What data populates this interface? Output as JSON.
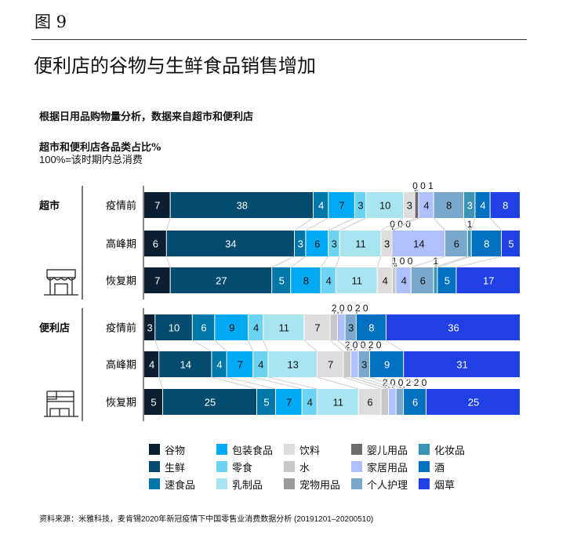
{
  "figure_label": "图 9",
  "title": "便利店的谷物与生鲜食品销售增加",
  "subtitle": "根据日用品购物量分析，数据来自超市和便利店",
  "source": "资料来源：米雅科技，麦肯锡2020年新冠疫情下中国零售业消费数据分析 (20191201–20200510)",
  "chart_data": {
    "type": "bar",
    "orientation": "horizontal",
    "stacked": "100%",
    "title": "超市和便利店各品类占比%",
    "note": "100%=该时期内总消费",
    "groups": [
      {
        "name": "超市",
        "icon": "storefront-icon",
        "categories": [
          "疫情前",
          "高峰期",
          "恢复期"
        ]
      },
      {
        "name": "便利店",
        "icon": "building-icon",
        "categories": [
          "疫情前",
          "高峰期",
          "恢复期"
        ]
      }
    ],
    "series": [
      {
        "name": "谷物",
        "color": "#0b1f33",
        "values": [
          7,
          6,
          7,
          3,
          4,
          5
        ]
      },
      {
        "name": "生鲜",
        "color": "#034b6f",
        "values": [
          38,
          34,
          27,
          10,
          14,
          25
        ]
      },
      {
        "name": "速食品",
        "color": "#0077a8",
        "values": [
          4,
          3,
          5,
          6,
          4,
          5
        ]
      },
      {
        "name": "包装食品",
        "color": "#00a9f4",
        "values": [
          7,
          6,
          8,
          9,
          7,
          7
        ]
      },
      {
        "name": "零食",
        "color": "#6dd3f2",
        "values": [
          3,
          3,
          4,
          4,
          4,
          4
        ]
      },
      {
        "name": "乳制品",
        "color": "#a9e5f0",
        "values": [
          10,
          11,
          11,
          11,
          13,
          11
        ]
      },
      {
        "name": "饮料",
        "color": "#dddddd",
        "values": [
          3,
          3,
          4,
          7,
          7,
          6
        ]
      },
      {
        "name": "水",
        "color": "#c8c8c8",
        "values": [
          0,
          0,
          1,
          2,
          2,
          2
        ]
      },
      {
        "name": "宠物用品",
        "color": "#9b9b9b",
        "values": [
          0,
          0,
          0,
          0,
          0,
          0
        ]
      },
      {
        "name": "婴儿用品",
        "color": "#6c6c6c",
        "values": [
          1,
          0,
          0,
          0,
          0,
          0
        ]
      },
      {
        "name": "家居用品",
        "color": "#b0c0fc",
        "values": [
          4,
          14,
          4,
          2,
          2,
          2
        ]
      },
      {
        "name": "个人护理",
        "color": "#7aa8cc",
        "values": [
          8,
          6,
          6,
          3,
          3,
          2
        ]
      },
      {
        "name": "化妆品",
        "color": "#3b94b3",
        "values": [
          3,
          1,
          1,
          0,
          0,
          0
        ]
      },
      {
        "name": "酒",
        "color": "#0070c0",
        "values": [
          4,
          8,
          5,
          8,
          9,
          6
        ]
      },
      {
        "name": "烟草",
        "color": "#2040e6",
        "values": [
          8,
          5,
          17,
          36,
          31,
          25
        ]
      }
    ],
    "legend": "bottom",
    "xlim": [
      0,
      100
    ],
    "grid": false
  }
}
